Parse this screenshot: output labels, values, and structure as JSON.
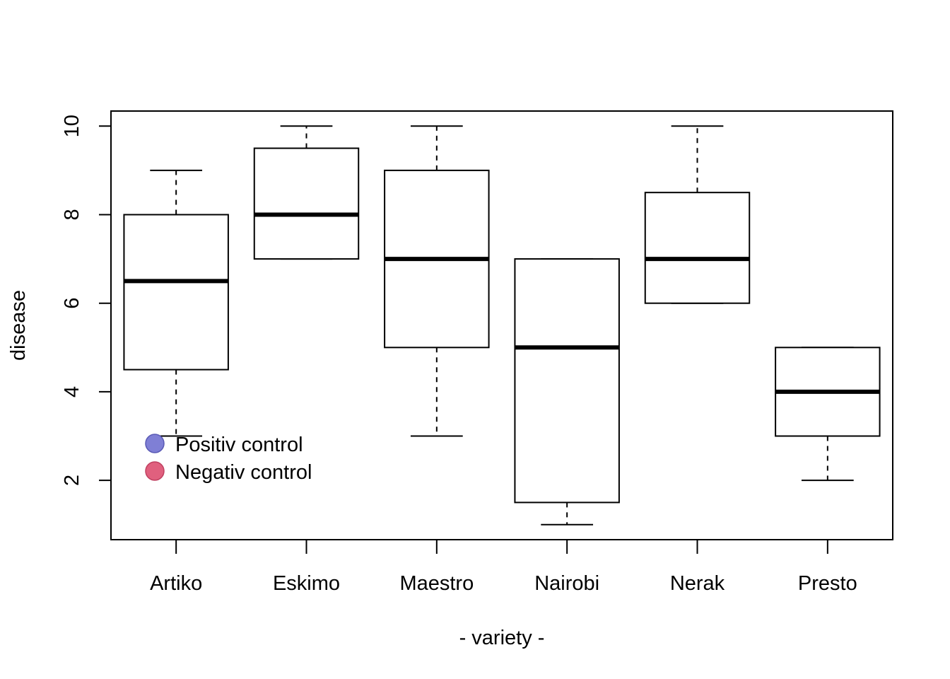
{
  "chart_data": {
    "type": "boxplot",
    "xlabel": "- variety -",
    "ylabel": "disease",
    "ylim": [
      0.66,
      10.34
    ],
    "yticks": [
      2,
      4,
      6,
      8,
      10
    ],
    "categories": [
      "Artiko",
      "Eskimo",
      "Maestro",
      "Nairobi",
      "Nerak",
      "Presto"
    ],
    "boxes": [
      {
        "name": "Artiko",
        "min": 3,
        "q1": 4.5,
        "median": 6.5,
        "q3": 8,
        "max": 9
      },
      {
        "name": "Eskimo",
        "min": 7,
        "q1": 7,
        "median": 8,
        "q3": 9.5,
        "max": 10
      },
      {
        "name": "Maestro",
        "min": 3,
        "q1": 5,
        "median": 7,
        "q3": 9,
        "max": 10
      },
      {
        "name": "Nairobi",
        "min": 1,
        "q1": 1.5,
        "median": 5,
        "q3": 7,
        "max": 7
      },
      {
        "name": "Nerak",
        "min": 6,
        "q1": 6,
        "median": 7,
        "q3": 8.5,
        "max": 10
      },
      {
        "name": "Presto",
        "min": 2,
        "q1": 3,
        "median": 4,
        "q3": 5,
        "max": 5
      }
    ],
    "legend": {
      "placement": "bottom-left",
      "items": [
        {
          "label": "Positiv control",
          "color": "#7f7fd5"
        },
        {
          "label": "Negativ control",
          "color": "#e0607e"
        }
      ]
    }
  }
}
